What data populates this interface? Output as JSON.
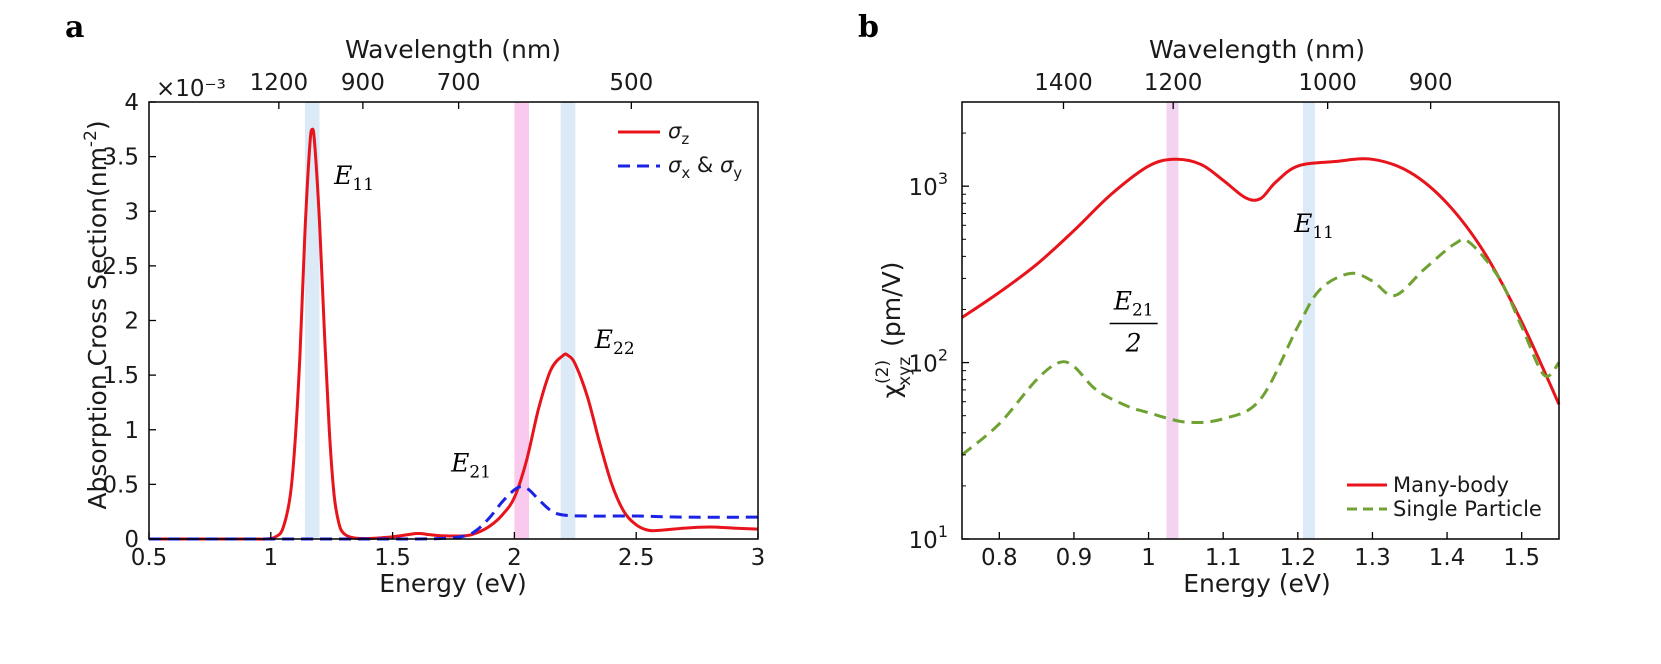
{
  "chart_data": [
    {
      "panel": "a",
      "type": "line",
      "xlabel": "Energy (eV)",
      "ylabel": "Absorption Cross Section(nm",
      "ylabel_superscript": "-2",
      "ylabel_suffix": ")",
      "top_xlabel": "Wavelength (nm)",
      "exponent_label": "×10⁻³",
      "xlim": [
        0.5,
        3
      ],
      "ylim": [
        0,
        4
      ],
      "xticks": [
        0.5,
        1,
        1.5,
        2,
        2.5,
        3
      ],
      "xtick_labels": [
        "0.5",
        "1",
        "1.5",
        "2",
        "2.5",
        "3"
      ],
      "yticks": [
        0,
        0.5,
        1,
        1.5,
        2,
        2.5,
        3,
        3.5,
        4
      ],
      "ytick_labels": [
        "0",
        "0.5",
        "1",
        "1.5",
        "2",
        "2.5",
        "3",
        "3.5",
        "4"
      ],
      "top_ticks_energy": [
        1.033,
        1.378,
        1.771,
        2.48
      ],
      "top_tick_labels": [
        "1200",
        "900",
        "700",
        "500"
      ],
      "bands": [
        {
          "x": 1.17,
          "width": 0.06,
          "color": "#dce9f7"
        },
        {
          "x": 2.03,
          "width": 0.06,
          "color": "#f9c9ee"
        },
        {
          "x": 2.22,
          "width": 0.06,
          "color": "#dce9f7"
        }
      ],
      "annotations": [
        {
          "main": "E",
          "sub": "11",
          "x": 1.26,
          "y": 3.25
        },
        {
          "main": "E",
          "sub": "21",
          "x": 1.74,
          "y": 0.62
        },
        {
          "main": "E",
          "sub": "22",
          "x": 2.33,
          "y": 1.75
        }
      ],
      "legend": {
        "placement": "top-right",
        "entries": [
          {
            "label": "σ",
            "sub": "z",
            "color": "#e8141b",
            "style": "solid"
          },
          {
            "label": "σ",
            "sub": "x",
            "mid": " & σ",
            "sub2": "y",
            "color": "#1a23e6",
            "style": "dashed"
          }
        ]
      },
      "series": [
        {
          "name": "σz",
          "color": "#e8141b",
          "style": "solid",
          "x": [
            0.5,
            0.9,
            0.98,
            1.02,
            1.05,
            1.08,
            1.1,
            1.12,
            1.14,
            1.16,
            1.17,
            1.18,
            1.2,
            1.22,
            1.24,
            1.26,
            1.28,
            1.3,
            1.34,
            1.4,
            1.5,
            1.6,
            1.65,
            1.7,
            1.8,
            1.85,
            1.9,
            1.95,
            2.0,
            2.05,
            2.1,
            2.15,
            2.2,
            2.22,
            2.25,
            2.3,
            2.35,
            2.4,
            2.45,
            2.5,
            2.55,
            2.6,
            2.7,
            2.8,
            2.9,
            3.0
          ],
          "y": [
            0,
            0,
            0,
            0.02,
            0.1,
            0.4,
            0.9,
            1.7,
            2.8,
            3.6,
            3.75,
            3.62,
            2.9,
            1.9,
            1.0,
            0.4,
            0.14,
            0.05,
            0.01,
            0.005,
            0.02,
            0.05,
            0.04,
            0.03,
            0.03,
            0.06,
            0.12,
            0.22,
            0.38,
            0.72,
            1.2,
            1.55,
            1.68,
            1.68,
            1.6,
            1.3,
            0.88,
            0.5,
            0.25,
            0.13,
            0.08,
            0.08,
            0.1,
            0.11,
            0.1,
            0.09
          ]
        },
        {
          "name": "σx & σy",
          "color": "#1a23e6",
          "style": "dashed",
          "x": [
            0.5,
            1.5,
            1.7,
            1.8,
            1.85,
            1.9,
            1.95,
            2.0,
            2.03,
            2.06,
            2.1,
            2.15,
            2.2,
            2.3,
            2.5,
            2.7,
            3.0
          ],
          "y": [
            0,
            0,
            0.005,
            0.03,
            0.09,
            0.2,
            0.34,
            0.45,
            0.48,
            0.45,
            0.36,
            0.26,
            0.22,
            0.21,
            0.21,
            0.2,
            0.2
          ]
        }
      ]
    },
    {
      "panel": "b",
      "type": "line",
      "yscale": "log",
      "xlabel": "Energy (eV)",
      "ylabel": "(pm/V)",
      "ylabel_symbol": "χ",
      "ylabel_superscript": "(2)",
      "ylabel_subscript": "xyz",
      "top_xlabel": "Wavelength (nm)",
      "xlim": [
        0.75,
        1.55
      ],
      "ylim": [
        10,
        3000
      ],
      "xticks": [
        0.8,
        0.9,
        1.0,
        1.1,
        1.2,
        1.3,
        1.4,
        1.5
      ],
      "xtick_labels": [
        "0.8",
        "0.9",
        "1",
        "1.1",
        "1.2",
        "1.3",
        "1.4",
        "1.5"
      ],
      "yticks": [
        10,
        100,
        1000
      ],
      "ytick_labels": [
        {
          "base": "10",
          "exp": "1"
        },
        {
          "base": "10",
          "exp": "2"
        },
        {
          "base": "10",
          "exp": "3"
        }
      ],
      "top_ticks_energy": [
        0.886,
        1.033,
        1.24,
        1.378
      ],
      "top_tick_labels": [
        "1400",
        "1200",
        "1000",
        "900"
      ],
      "bands": [
        {
          "x": 1.032,
          "width": 0.016,
          "color": "#f3d3f0"
        },
        {
          "x": 1.215,
          "width": 0.016,
          "color": "#dce9f7"
        }
      ],
      "annotations": [
        {
          "type": "fraction",
          "main": "E",
          "sub": "21",
          "denominator": "2",
          "x": 0.98,
          "y": 200
        },
        {
          "main": "E",
          "sub": "11",
          "x": 1.195,
          "y": 550
        }
      ],
      "legend": {
        "placement": "bottom-right",
        "entries": [
          {
            "label": "Many-body",
            "color": "#e8141b",
            "style": "solid"
          },
          {
            "label": "Single Particle",
            "color": "#6fa233",
            "style": "dashed"
          }
        ]
      },
      "series": [
        {
          "name": "Many-body",
          "color": "#e8141b",
          "style": "solid",
          "x": [
            0.75,
            0.8,
            0.85,
            0.9,
            0.95,
            1.0,
            1.035,
            1.07,
            1.1,
            1.13,
            1.15,
            1.17,
            1.2,
            1.25,
            1.3,
            1.35,
            1.4,
            1.45,
            1.5,
            1.55
          ],
          "y": [
            180,
            250,
            360,
            560,
            900,
            1300,
            1420,
            1330,
            1080,
            860,
            850,
            1050,
            1300,
            1380,
            1420,
            1200,
            800,
            420,
            170,
            58
          ]
        },
        {
          "name": "Single Particle",
          "color": "#6fa233",
          "style": "dashed",
          "x": [
            0.75,
            0.8,
            0.85,
            0.88,
            0.9,
            0.93,
            0.97,
            1.0,
            1.05,
            1.1,
            1.15,
            1.2,
            1.23,
            1.27,
            1.3,
            1.33,
            1.37,
            1.41,
            1.43,
            1.47,
            1.5,
            1.53,
            1.55
          ],
          "y": [
            30,
            45,
            80,
            100,
            95,
            70,
            57,
            52,
            46,
            48,
            62,
            160,
            260,
            320,
            290,
            240,
            340,
            470,
            480,
            300,
            160,
            85,
            100
          ]
        }
      ]
    }
  ],
  "panels": {
    "a": {
      "letter": "a"
    },
    "b": {
      "letter": "b"
    }
  }
}
